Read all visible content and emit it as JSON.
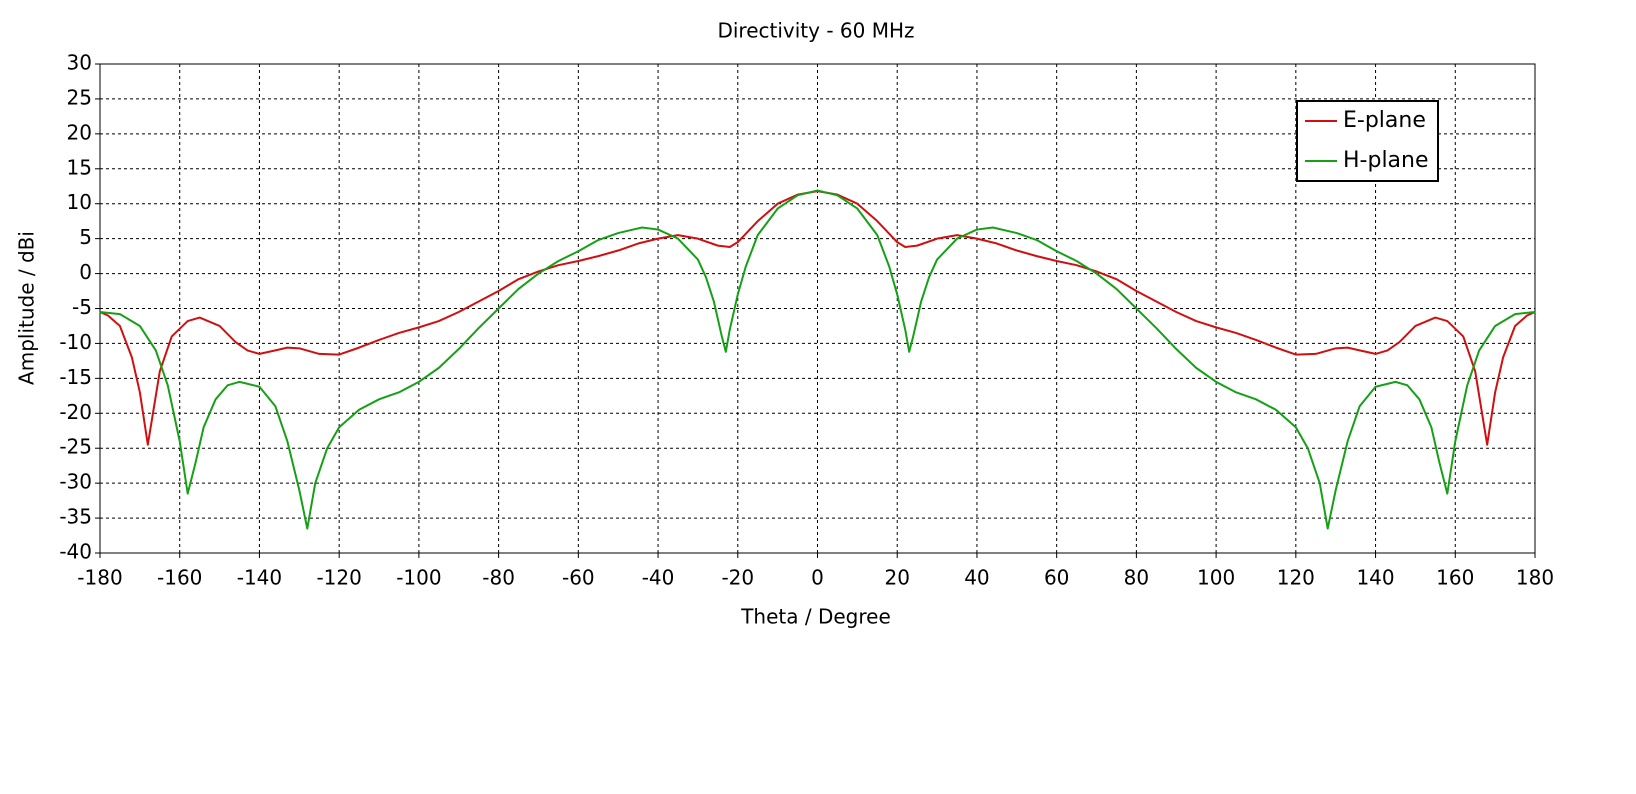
{
  "chart_data": {
    "type": "line",
    "title": "Directivity - 60 MHz",
    "xlabel": "Theta / Degree",
    "ylabel": "Amplitude / dBi",
    "xlim": [
      -180,
      180
    ],
    "ylim": [
      -40,
      30
    ],
    "xticks": [
      -180,
      -160,
      -140,
      -120,
      -100,
      -80,
      -60,
      -40,
      -20,
      0,
      20,
      40,
      60,
      80,
      100,
      120,
      140,
      160,
      180
    ],
    "yticks": [
      -40,
      -35,
      -30,
      -25,
      -20,
      -15,
      -10,
      -5,
      0,
      5,
      10,
      15,
      20,
      25,
      30
    ],
    "grid": true,
    "legend": "upper right",
    "series": [
      {
        "name": "E-plane",
        "color": "#d01010",
        "x": [
          -180,
          -178,
          -175,
          -172,
          -170,
          -168,
          -165,
          -162,
          -158,
          -155,
          -150,
          -146,
          -143,
          -140,
          -136,
          -133,
          -130,
          -125,
          -120,
          -115,
          -110,
          -105,
          -100,
          -95,
          -90,
          -85,
          -80,
          -75,
          -70,
          -65,
          -60,
          -55,
          -50,
          -45,
          -40,
          -35,
          -30,
          -25,
          -22,
          -20,
          -15,
          -10,
          -5,
          0,
          5,
          10,
          15,
          20,
          22,
          25,
          30,
          35,
          40,
          45,
          50,
          55,
          60,
          65,
          70,
          75,
          80,
          85,
          90,
          95,
          100,
          105,
          110,
          115,
          120,
          125,
          130,
          133,
          136,
          140,
          143,
          146,
          150,
          155,
          158,
          162,
          165,
          168,
          170,
          172,
          175,
          178,
          180
        ],
        "values": [
          -5.5,
          -6,
          -7.5,
          -12,
          -17,
          -24.5,
          -14,
          -9,
          -6.8,
          -6.3,
          -7.5,
          -9.8,
          -11,
          -11.5,
          -11,
          -10.6,
          -10.7,
          -11.5,
          -11.6,
          -10.6,
          -9.5,
          -8.5,
          -7.7,
          -6.8,
          -5.5,
          -4,
          -2.5,
          -0.8,
          0.3,
          1.2,
          1.8,
          2.5,
          3.3,
          4.3,
          5,
          5.5,
          5,
          4,
          3.8,
          4.5,
          7.5,
          10,
          11.3,
          11.8,
          11.3,
          10,
          7.5,
          4.5,
          3.8,
          4,
          5,
          5.5,
          5,
          4.3,
          3.3,
          2.5,
          1.8,
          1.2,
          0.3,
          -0.8,
          -2.5,
          -4,
          -5.5,
          -6.8,
          -7.7,
          -8.5,
          -9.5,
          -10.6,
          -11.6,
          -11.5,
          -10.7,
          -10.6,
          -11,
          -11.5,
          -11,
          -9.8,
          -7.5,
          -6.3,
          -6.8,
          -9,
          -14,
          -24.5,
          -17,
          -12,
          -7.5,
          -6,
          -5.5
        ]
      },
      {
        "name": "H-plane",
        "color": "#16a016",
        "x": [
          -180,
          -175,
          -170,
          -166,
          -163,
          -160,
          -158,
          -156,
          -154,
          -151,
          -148,
          -145,
          -140,
          -136,
          -133,
          -130,
          -128,
          -126,
          -123,
          -120,
          -115,
          -110,
          -105,
          -100,
          -95,
          -90,
          -85,
          -80,
          -75,
          -70,
          -65,
          -60,
          -55,
          -50,
          -44,
          -40,
          -35,
          -30,
          -28,
          -26,
          -24,
          -23,
          -22,
          -20,
          -18,
          -15,
          -10,
          -5,
          0,
          5,
          10,
          15,
          18,
          20,
          22,
          23,
          24,
          26,
          28,
          30,
          35,
          40,
          44,
          50,
          55,
          60,
          65,
          70,
          75,
          80,
          85,
          90,
          95,
          100,
          105,
          110,
          115,
          120,
          123,
          126,
          128,
          130,
          133,
          136,
          140,
          145,
          148,
          151,
          154,
          156,
          158,
          160,
          163,
          166,
          170,
          175,
          180
        ],
        "values": [
          -5.5,
          -5.8,
          -7.5,
          -11,
          -16,
          -24,
          -31.5,
          -27,
          -22,
          -18,
          -16,
          -15.5,
          -16.2,
          -19,
          -24,
          -31,
          -36.5,
          -30,
          -25,
          -22,
          -19.5,
          -18,
          -17,
          -15.5,
          -13.5,
          -10.8,
          -7.8,
          -5,
          -2.2,
          0,
          1.8,
          3.2,
          4.8,
          5.8,
          6.6,
          6.3,
          5,
          2,
          -0.5,
          -4,
          -9,
          -11.2,
          -8,
          -3,
          1,
          5.5,
          9.3,
          11.2,
          11.9,
          11.2,
          9.3,
          5.5,
          1,
          -3,
          -8,
          -11.2,
          -9,
          -4,
          -0.5,
          2,
          5,
          6.3,
          6.6,
          5.8,
          4.8,
          3.2,
          1.8,
          0,
          -2.2,
          -5,
          -7.8,
          -10.8,
          -13.5,
          -15.5,
          -17,
          -18,
          -19.5,
          -22,
          -25,
          -30,
          -36.5,
          -31,
          -24,
          -19,
          -16.2,
          -15.5,
          -16,
          -18,
          -22,
          -27,
          -31.5,
          -24,
          -16,
          -11,
          -7.5,
          -5.8,
          -5.5
        ]
      }
    ]
  }
}
